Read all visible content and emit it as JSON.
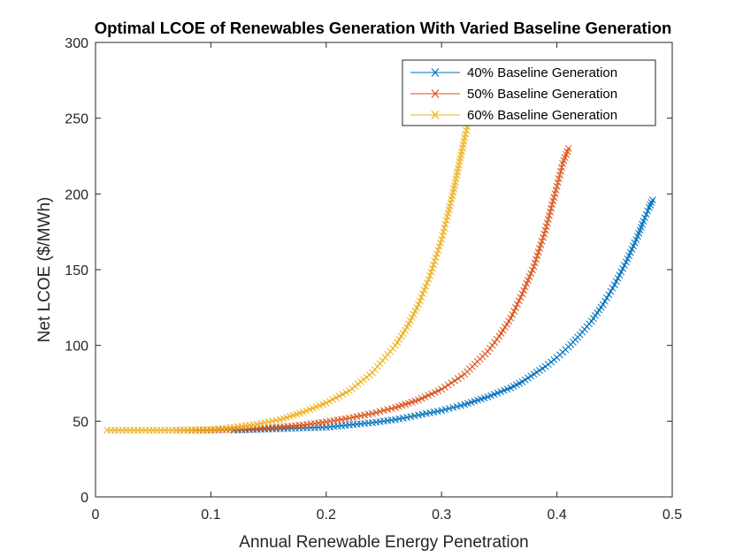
{
  "chart_data": {
    "type": "line",
    "title": "Optimal LCOE of Renewables Generation With Varied Baseline Generation",
    "xlabel": "Annual Renewable Energy Penetration",
    "ylabel": "Net LCOE ($/MWh)",
    "xlim": [
      0,
      0.5
    ],
    "ylim": [
      0,
      300
    ],
    "x_ticks": [
      "0",
      "0.1",
      "0.2",
      "0.3",
      "0.4",
      "0.5"
    ],
    "y_ticks": [
      "0",
      "50",
      "100",
      "150",
      "200",
      "250",
      "300"
    ],
    "grid": false,
    "legend_position": "top-right",
    "marker": "x",
    "series": [
      {
        "name": "40% Baseline Generation",
        "color": "#0072BD",
        "x": [
          0.12,
          0.14,
          0.16,
          0.18,
          0.2,
          0.22,
          0.24,
          0.26,
          0.28,
          0.3,
          0.32,
          0.34,
          0.36,
          0.37,
          0.38,
          0.39,
          0.4,
          0.41,
          0.42,
          0.43,
          0.44,
          0.45,
          0.46,
          0.47,
          0.475,
          0.48,
          0.483
        ],
        "y": [
          44,
          44.5,
          45,
          45.5,
          46,
          47.5,
          49,
          51,
          54,
          57,
          61,
          66,
          72,
          76,
          81,
          86,
          92,
          99,
          107,
          116,
          127,
          140,
          155,
          172,
          182,
          191,
          196
        ]
      },
      {
        "name": "50% Baseline Generation",
        "color": "#D95319",
        "x": [
          0.07,
          0.1,
          0.12,
          0.14,
          0.16,
          0.18,
          0.2,
          0.22,
          0.24,
          0.26,
          0.28,
          0.3,
          0.32,
          0.34,
          0.35,
          0.36,
          0.37,
          0.38,
          0.39,
          0.4,
          0.405,
          0.41
        ],
        "y": [
          44,
          44,
          44.5,
          45,
          46,
          47.5,
          49.5,
          52,
          55,
          59,
          64,
          71,
          81,
          96,
          106,
          118,
          134,
          152,
          176,
          205,
          220,
          230
        ]
      },
      {
        "name": "60% Baseline Generation",
        "color": "#EDB120",
        "x": [
          0.01,
          0.04,
          0.07,
          0.1,
          0.12,
          0.14,
          0.16,
          0.18,
          0.2,
          0.22,
          0.24,
          0.26,
          0.27,
          0.28,
          0.29,
          0.3,
          0.305,
          0.31,
          0.315,
          0.32,
          0.325,
          0.328
        ],
        "y": [
          44,
          44,
          44,
          44.5,
          46,
          48,
          51,
          56,
          62,
          70,
          82,
          100,
          112,
          127,
          146,
          170,
          185,
          201,
          219,
          237,
          254,
          264
        ]
      }
    ]
  }
}
